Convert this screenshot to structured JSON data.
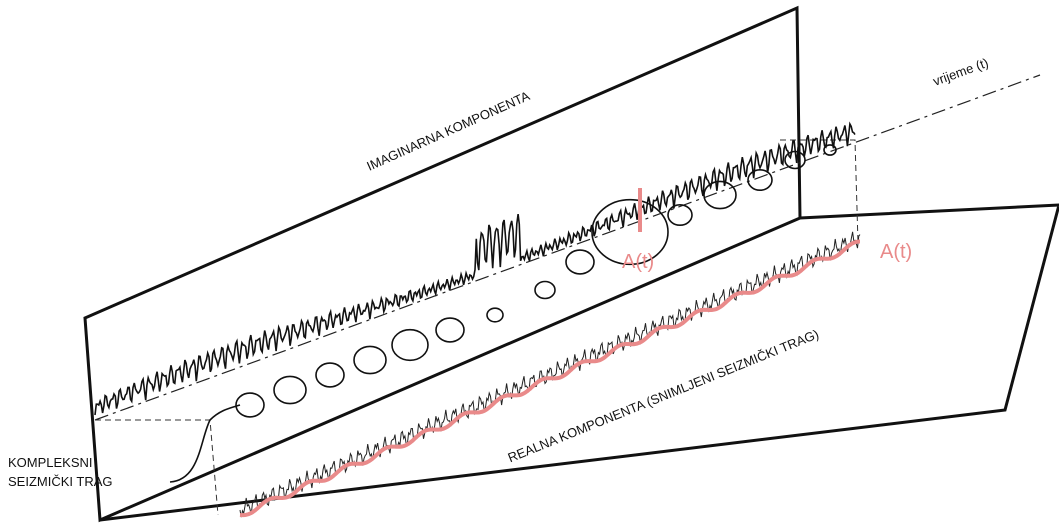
{
  "vertical_plane": {
    "label": "IMAGINARNA KOMPONENTA"
  },
  "time_axis": {
    "label": "vrijeme (t)"
  },
  "horizontal_plane": {
    "label": "REALNA KOMPONENTA (SNIMLJENI SEIZMIČKI TRAG)"
  },
  "amplitude_labels": [
    "A(t)",
    "A(t)"
  ],
  "complex_trace_label": [
    "KOMPLEKSNI",
    "SEIZMIČKI TRAG"
  ]
}
